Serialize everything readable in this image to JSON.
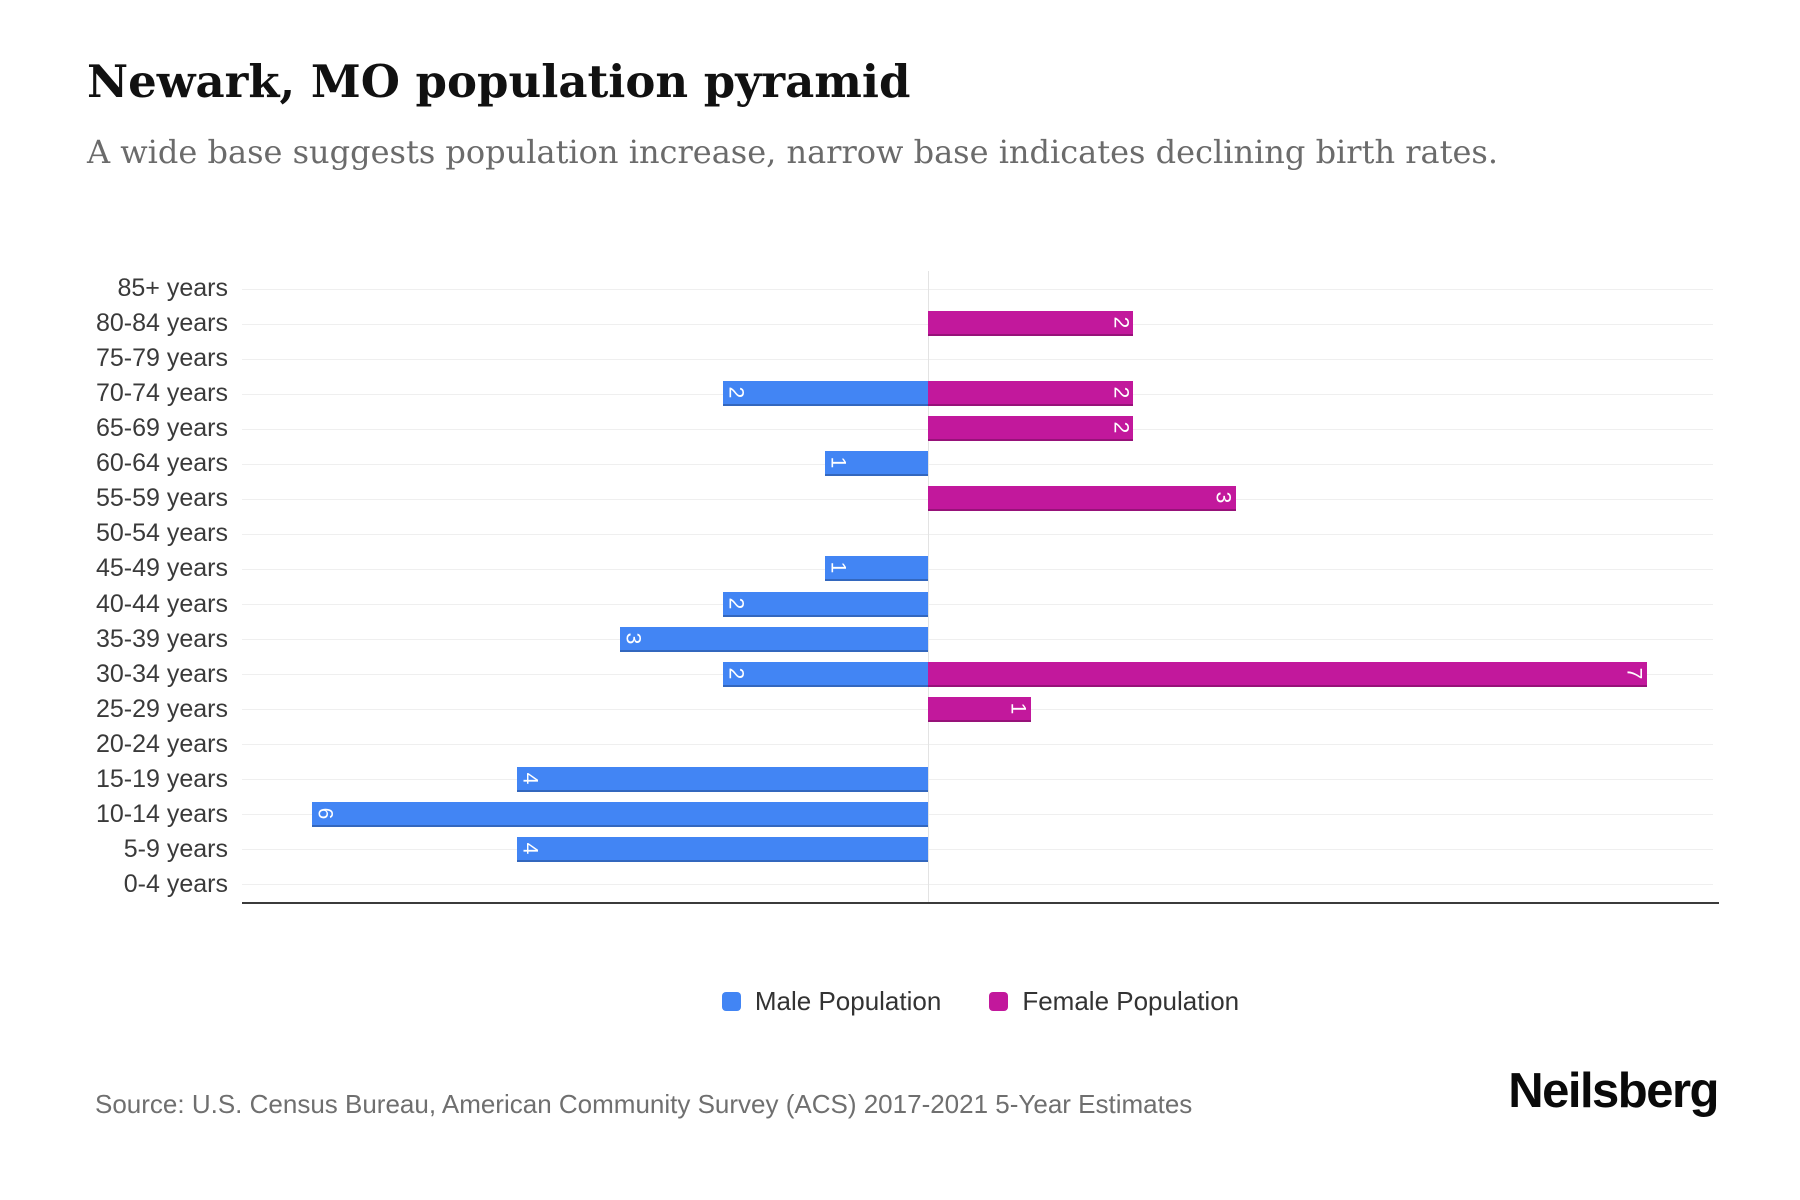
{
  "title": "Newark, MO population pyramid",
  "subtitle": "A wide base suggests population increase, narrow base indicates declining birth rates.",
  "source": "Source: U.S. Census Bureau, American Community Survey (ACS) 2017-2021 5-Year Estimates",
  "logo_text": "Neilsberg",
  "colors": {
    "male": "#4285f4",
    "female": "#c2189c",
    "grid": "#efefef",
    "axis": "#3b3b3b",
    "value_label": "#ffffff"
  },
  "chart_data": {
    "type": "bar",
    "subtype": "population-pyramid",
    "orientation": "horizontal",
    "grid": true,
    "legend_position": "bottom",
    "value_labels_position": "inside-end, rotated 90deg",
    "categories": [
      "85+ years",
      "80-84 years",
      "75-79 years",
      "70-74 years",
      "65-69 years",
      "60-64 years",
      "55-59 years",
      "50-54 years",
      "45-49 years",
      "40-44 years",
      "35-39 years",
      "30-34 years",
      "25-29 years",
      "20-24 years",
      "15-19 years",
      "10-14 years",
      "5-9 years",
      "0-4 years"
    ],
    "series": [
      {
        "name": "Male Population",
        "side": "left",
        "color": "#4285f4",
        "values": [
          0,
          0,
          0,
          2,
          0,
          1,
          0,
          0,
          1,
          2,
          3,
          2,
          0,
          0,
          4,
          6,
          4,
          0
        ]
      },
      {
        "name": "Female Population",
        "side": "right",
        "color": "#c2189c",
        "values": [
          0,
          2,
          0,
          2,
          2,
          0,
          3,
          0,
          0,
          0,
          0,
          7,
          1,
          0,
          0,
          0,
          0,
          0
        ]
      }
    ],
    "axis_range_male": [
      0,
      6.7
    ],
    "axis_range_female": [
      0,
      7.7
    ]
  },
  "legend": {
    "items": [
      {
        "label": "Male Population"
      },
      {
        "label": "Female Population"
      }
    ]
  }
}
